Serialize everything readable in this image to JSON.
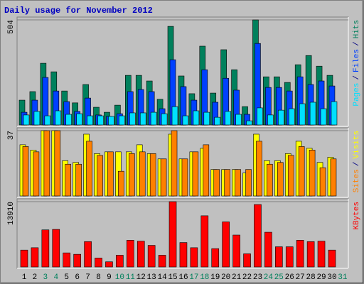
{
  "chart_data": [
    {
      "type": "bar",
      "title": "Daily usage for November 2012",
      "separator": "/",
      "ylim": [
        0,
        504
      ],
      "yticks": [
        504
      ],
      "grid": true,
      "series": [
        {
          "name": "Hits",
          "color": "#00805c",
          "values": [
            119,
            160,
            296,
            255,
            163,
            106,
            194,
            85,
            61,
            95,
            238,
            238,
            211,
            123,
            473,
            235,
            150,
            378,
            153,
            361,
            265,
            88,
            504,
            231,
            231,
            204,
            289,
            333,
            282,
            238,
            null
          ]
        },
        {
          "name": "Files",
          "color": "#0040ff",
          "values": [
            61,
            119,
            228,
            163,
            112,
            65,
            129,
            48,
            41,
            54,
            160,
            170,
            160,
            78,
            313,
            184,
            119,
            265,
            109,
            224,
            167,
            51,
            391,
            180,
            180,
            163,
            231,
            194,
            211,
            187,
            null
          ]
        },
        {
          "name": "Pages",
          "color": "#00e0ff",
          "values": [
            48,
            65,
            44,
            68,
            51,
            54,
            44,
            44,
            41,
            44,
            58,
            58,
            61,
            54,
            88,
            44,
            68,
            61,
            37,
            65,
            51,
            20,
            82,
            48,
            71,
            78,
            102,
            109,
            78,
            112,
            null
          ]
        }
      ]
    },
    {
      "type": "bar",
      "separator": "/",
      "ylim": [
        0,
        37
      ],
      "yticks": [
        37
      ],
      "grid": true,
      "series": [
        {
          "name": "Visits",
          "color": "#ffff00",
          "values": [
            29,
            26,
            37,
            37,
            20,
            19,
            35,
            24,
            25,
            25,
            25,
            29,
            24,
            21,
            35,
            21,
            25,
            27,
            15,
            15,
            15,
            13,
            35,
            20,
            20,
            24,
            31,
            27,
            19,
            22,
            null
          ]
        },
        {
          "name": "Sites",
          "color": "#ff8000",
          "values": [
            28,
            25,
            37,
            37,
            18,
            18,
            31,
            23,
            25,
            14,
            24,
            25,
            24,
            21,
            37,
            21,
            25,
            29,
            15,
            15,
            15,
            15,
            31,
            18,
            19,
            23,
            28,
            26,
            16,
            21,
            null
          ]
        }
      ]
    },
    {
      "type": "bar",
      "ylim": [
        0,
        13910
      ],
      "yticks": [
        13910
      ],
      "grid": true,
      "categories": [
        "1",
        "2",
        "3",
        "4",
        "5",
        "6",
        "7",
        "8",
        "9",
        "10",
        "11",
        "12",
        "13",
        "14",
        "15",
        "16",
        "17",
        "18",
        "19",
        "20",
        "21",
        "22",
        "23",
        "24",
        "25",
        "26",
        "27",
        "28",
        "29",
        "30",
        "31"
      ],
      "category_colors": [
        "#000000",
        "#000000",
        "#00805c",
        "#00805c",
        "#000000",
        "#000000",
        "#000000",
        "#000000",
        "#000000",
        "#00805c",
        "#00805c",
        "#000000",
        "#000000",
        "#000000",
        "#000000",
        "#000000",
        "#00805c",
        "#00805c",
        "#000000",
        "#000000",
        "#000000",
        "#000000",
        "#000000",
        "#00805c",
        "#00805c",
        "#000000",
        "#000000",
        "#000000",
        "#000000",
        "#000000",
        "#00805c"
      ],
      "series": [
        {
          "name": "KBytes",
          "color": "#ff0000",
          "values": [
            3600,
            4100,
            7900,
            8000,
            3000,
            2700,
            5400,
            1900,
            1100,
            2500,
            5700,
            5500,
            4600,
            2500,
            13910,
            5200,
            4100,
            10900,
            3900,
            9600,
            6800,
            2800,
            13300,
            7400,
            4300,
            4300,
            5700,
            5400,
            5500,
            3600,
            null
          ]
        }
      ]
    }
  ]
}
